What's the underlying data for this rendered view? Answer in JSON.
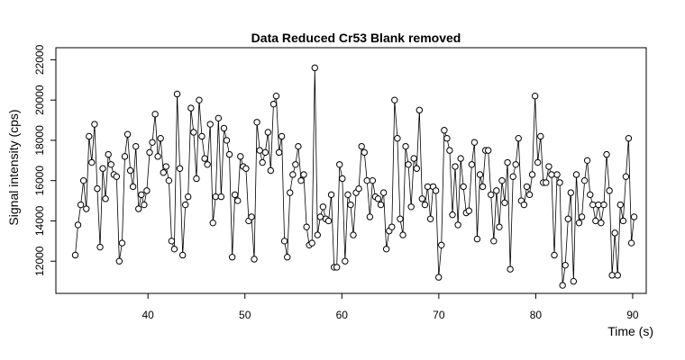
{
  "chart_data": {
    "type": "line",
    "title": "Data Reduced Cr53 Blank removed",
    "x_label": "Time (s)",
    "y_label": "Signal intensity (cps)",
    "markers": true,
    "color": "#000000",
    "xlim": [
      30.5,
      91.4
    ],
    "ylim": [
      10400,
      22600
    ],
    "xticks": [
      40,
      50,
      60,
      70,
      80,
      90
    ],
    "yticks": [
      12000,
      14000,
      16000,
      18000,
      20000,
      22000
    ],
    "x": [
      32.5,
      32.78,
      33.07,
      33.35,
      33.64,
      33.92,
      34.2,
      34.49,
      34.77,
      35.06,
      35.34,
      35.62,
      35.91,
      36.19,
      36.48,
      36.76,
      37.04,
      37.33,
      37.61,
      37.9,
      38.18,
      38.46,
      38.75,
      39.03,
      39.32,
      39.6,
      39.88,
      40.17,
      40.45,
      40.74,
      41.02,
      41.3,
      41.59,
      41.87,
      42.16,
      42.44,
      42.72,
      43.01,
      43.29,
      43.58,
      43.86,
      44.14,
      44.43,
      44.71,
      45.0,
      45.28,
      45.56,
      45.85,
      46.13,
      46.42,
      46.7,
      46.98,
      47.27,
      47.55,
      47.84,
      48.12,
      48.4,
      48.69,
      48.97,
      49.26,
      49.54,
      49.82,
      50.11,
      50.39,
      50.68,
      50.96,
      51.24,
      51.53,
      51.81,
      52.1,
      52.38,
      52.66,
      52.95,
      53.23,
      53.52,
      53.8,
      54.08,
      54.37,
      54.65,
      54.94,
      55.22,
      55.5,
      55.79,
      56.07,
      56.36,
      56.64,
      56.92,
      57.21,
      57.49,
      57.78,
      58.06,
      58.34,
      58.63,
      58.91,
      59.2,
      59.48,
      59.76,
      60.05,
      60.33,
      60.62,
      60.9,
      61.18,
      61.47,
      61.75,
      62.04,
      62.32,
      62.6,
      62.89,
      63.17,
      63.46,
      63.74,
      64.02,
      64.31,
      64.59,
      64.88,
      65.16,
      65.44,
      65.73,
      66.01,
      66.3,
      66.58,
      66.86,
      67.15,
      67.43,
      67.72,
      68.0,
      68.28,
      68.57,
      68.85,
      69.14,
      69.42,
      69.7,
      69.99,
      70.27,
      70.56,
      70.84,
      71.12,
      71.41,
      71.69,
      71.98,
      72.26,
      72.54,
      72.83,
      73.11,
      73.4,
      73.68,
      73.96,
      74.25,
      74.53,
      74.82,
      75.1,
      75.38,
      75.67,
      75.95,
      76.24,
      76.52,
      76.8,
      77.09,
      77.37,
      77.66,
      77.94,
      78.22,
      78.51,
      78.79,
      79.08,
      79.36,
      79.64,
      79.93,
      80.21,
      80.5,
      80.78,
      81.06,
      81.35,
      81.63,
      81.92,
      82.2,
      82.48,
      82.77,
      83.05,
      83.34,
      83.62,
      83.9,
      84.19,
      84.47,
      84.76,
      85.04,
      85.32,
      85.61,
      85.89,
      86.18,
      86.46,
      86.74,
      87.03,
      87.31,
      87.6,
      87.88,
      88.16,
      88.45,
      88.73,
      89.02,
      89.3,
      89.58,
      89.87,
      90.15
    ],
    "values": [
      12300,
      13800,
      14800,
      16000,
      14600,
      18200,
      16900,
      18800,
      15600,
      12700,
      16600,
      15100,
      17300,
      16800,
      16300,
      16200,
      12000,
      12900,
      17200,
      18300,
      16500,
      15700,
      17700,
      14600,
      15300,
      14800,
      15500,
      17400,
      17900,
      19300,
      17200,
      18100,
      16400,
      16700,
      16000,
      13000,
      12600,
      20300,
      16600,
      12300,
      14800,
      15200,
      19600,
      18400,
      16100,
      20000,
      18200,
      17100,
      16800,
      18800,
      13900,
      15200,
      19100,
      15200,
      18600,
      18000,
      17300,
      12200,
      15300,
      15000,
      17200,
      16700,
      16600,
      14000,
      14200,
      12100,
      18900,
      17500,
      16900,
      17400,
      18400,
      16500,
      19800,
      20200,
      17400,
      18200,
      13000,
      12200,
      15400,
      16300,
      16800,
      17700,
      16000,
      16300,
      13700,
      12800,
      12900,
      21600,
      13300,
      14200,
      14700,
      14100,
      14000,
      15300,
      11700,
      11700,
      16800,
      16100,
      12000,
      15300,
      14800,
      13300,
      15400,
      15600,
      17700,
      17400,
      16000,
      14200,
      16000,
      15200,
      15100,
      14800,
      15400,
      12600,
      13500,
      13700,
      20000,
      18100,
      14100,
      13300,
      17700,
      16800,
      14700,
      17100,
      16600,
      19500,
      15100,
      14800,
      15700,
      14100,
      15700,
      15500,
      11200,
      12800,
      18500,
      18100,
      17500,
      14300,
      16700,
      13800,
      17100,
      15700,
      14400,
      14500,
      16800,
      17900,
      13100,
      16300,
      15700,
      17500,
      17500,
      15300,
      13000,
      15500,
      13700,
      16000,
      14900,
      16900,
      11600,
      16200,
      16800,
      18100,
      15000,
      14800,
      15700,
      15300,
      16300,
      20200,
      16900,
      18200,
      15900,
      15900,
      16700,
      16300,
      12300,
      16300,
      15900,
      10800,
      11800,
      14100,
      15400,
      11000,
      16300,
      13900,
      14200,
      16000,
      17000,
      15300,
      14800,
      14000,
      14800,
      13900,
      14800,
      17300,
      15500,
      11300,
      13400,
      11300,
      14800,
      14000,
      16200,
      18100,
      12900,
      14200
    ]
  }
}
